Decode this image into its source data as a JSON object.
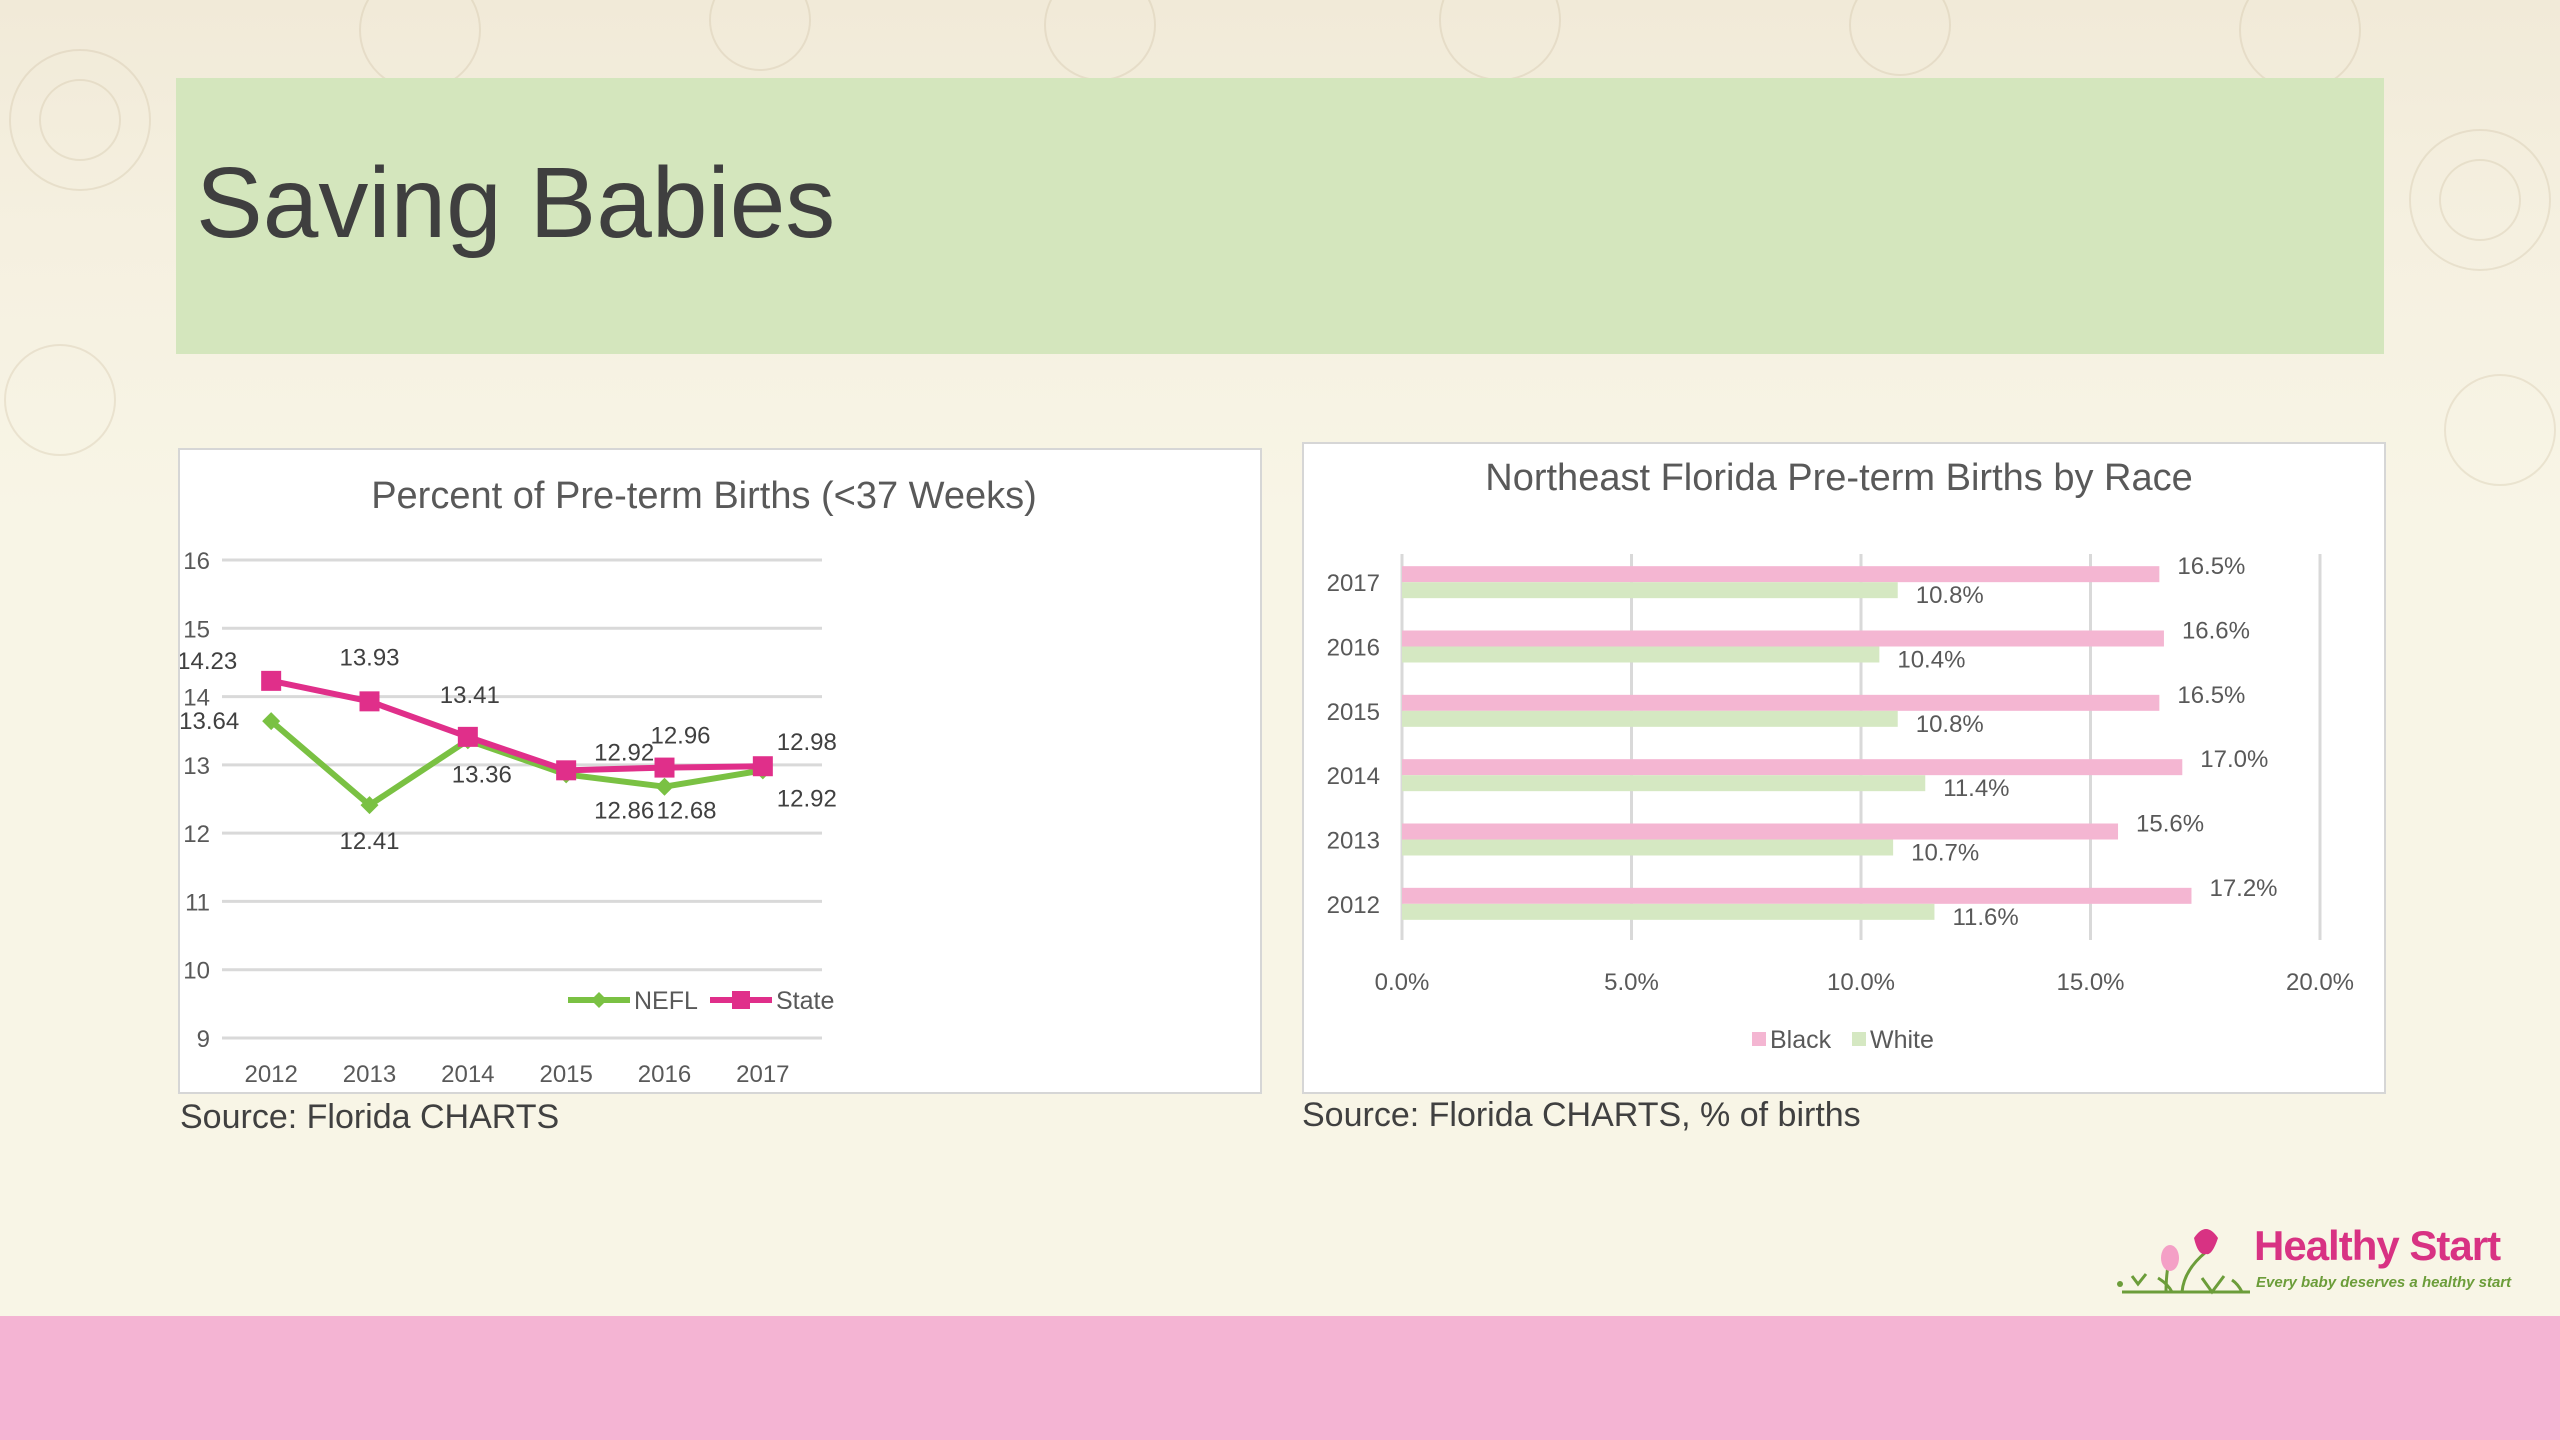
{
  "slide": {
    "title": "Saving Babies",
    "source_left": "Source: Florida CHARTS",
    "source_right": "Source: Florida CHARTS, % of births"
  },
  "logo": {
    "name": "Healthy Start",
    "tagline": "Every baby deserves a healthy start"
  },
  "colors": {
    "title_band": "#d4e6bd",
    "bottom_band": "#f4b4d3",
    "nefl_green": "#7ac143",
    "state_magenta": "#e02f8a",
    "black_bar": "#f4b6d2",
    "white_bar": "#d5e8c2"
  },
  "chart_data": [
    {
      "type": "line",
      "title": "Percent of Pre-term Births (<37 Weeks)",
      "categories": [
        "2012",
        "2013",
        "2014",
        "2015",
        "2016",
        "2017"
      ],
      "ylim": [
        9,
        16
      ],
      "yticks": [
        9,
        10,
        11,
        12,
        13,
        14,
        15,
        16
      ],
      "grid": true,
      "legend_position": "bottom-center",
      "series": [
        {
          "name": "NEFL",
          "color": "#7ac143",
          "marker": "diamond",
          "values": [
            13.64,
            12.41,
            13.36,
            12.86,
            12.68,
            12.92
          ]
        },
        {
          "name": "State",
          "color": "#e02f8a",
          "marker": "square",
          "values": [
            14.23,
            13.93,
            13.41,
            12.92,
            12.96,
            12.98
          ]
        }
      ]
    },
    {
      "type": "bar",
      "orientation": "horizontal",
      "title": "Northeast Florida Pre-term Births by Race",
      "categories": [
        "2017",
        "2016",
        "2015",
        "2014",
        "2013",
        "2012"
      ],
      "xlim": [
        0,
        20
      ],
      "xticks": [
        "0.0%",
        "5.0%",
        "10.0%",
        "15.0%",
        "20.0%"
      ],
      "grid": true,
      "legend_position": "bottom-center",
      "series": [
        {
          "name": "Black",
          "color": "#f4b6d2",
          "values": [
            16.5,
            16.6,
            16.5,
            17.0,
            15.6,
            17.2
          ]
        },
        {
          "name": "White",
          "color": "#d5e8c2",
          "values": [
            10.8,
            10.4,
            10.8,
            11.4,
            10.7,
            11.6
          ]
        }
      ]
    }
  ]
}
